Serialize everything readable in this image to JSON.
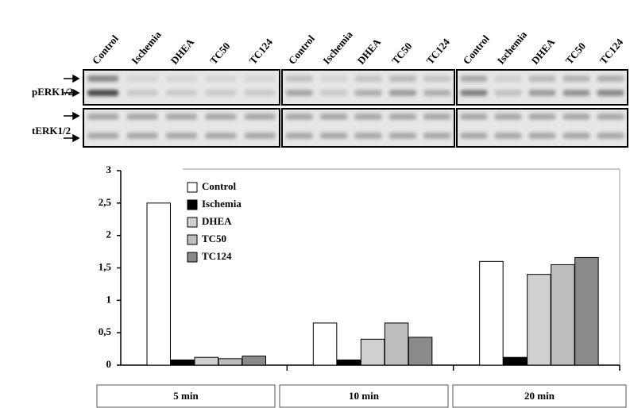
{
  "blot": {
    "lanes": [
      "Control",
      "Ischemia",
      "DHEA",
      "TC50",
      "TC124"
    ],
    "rows": [
      "pERK1/2",
      "tERK1/2"
    ]
  },
  "chart_data": {
    "type": "bar",
    "categories": [
      "5 min",
      "10 min",
      "20 min"
    ],
    "series": [
      {
        "name": "Control",
        "color": "#ffffff",
        "values": [
          2.5,
          0.65,
          1.6
        ]
      },
      {
        "name": "Ischemia",
        "color": "#000000",
        "values": [
          0.08,
          0.08,
          0.12
        ]
      },
      {
        "name": "DHEA",
        "color": "#d0d0d0",
        "values": [
          0.12,
          0.4,
          1.4
        ]
      },
      {
        "name": "TC50",
        "color": "#bdbdbd",
        "values": [
          0.1,
          0.65,
          1.55
        ]
      },
      {
        "name": "TC124",
        "color": "#8a8a8a",
        "values": [
          0.14,
          0.43,
          1.66
        ]
      }
    ],
    "ylim": [
      0,
      3
    ],
    "yticks": [
      0,
      {
        "value": 0.5,
        "label": "0,5"
      },
      1,
      {
        "value": 1.5,
        "label": "1,5"
      },
      2,
      {
        "value": 2.5,
        "label": "2,5"
      },
      3
    ],
    "legend": "upper left"
  }
}
